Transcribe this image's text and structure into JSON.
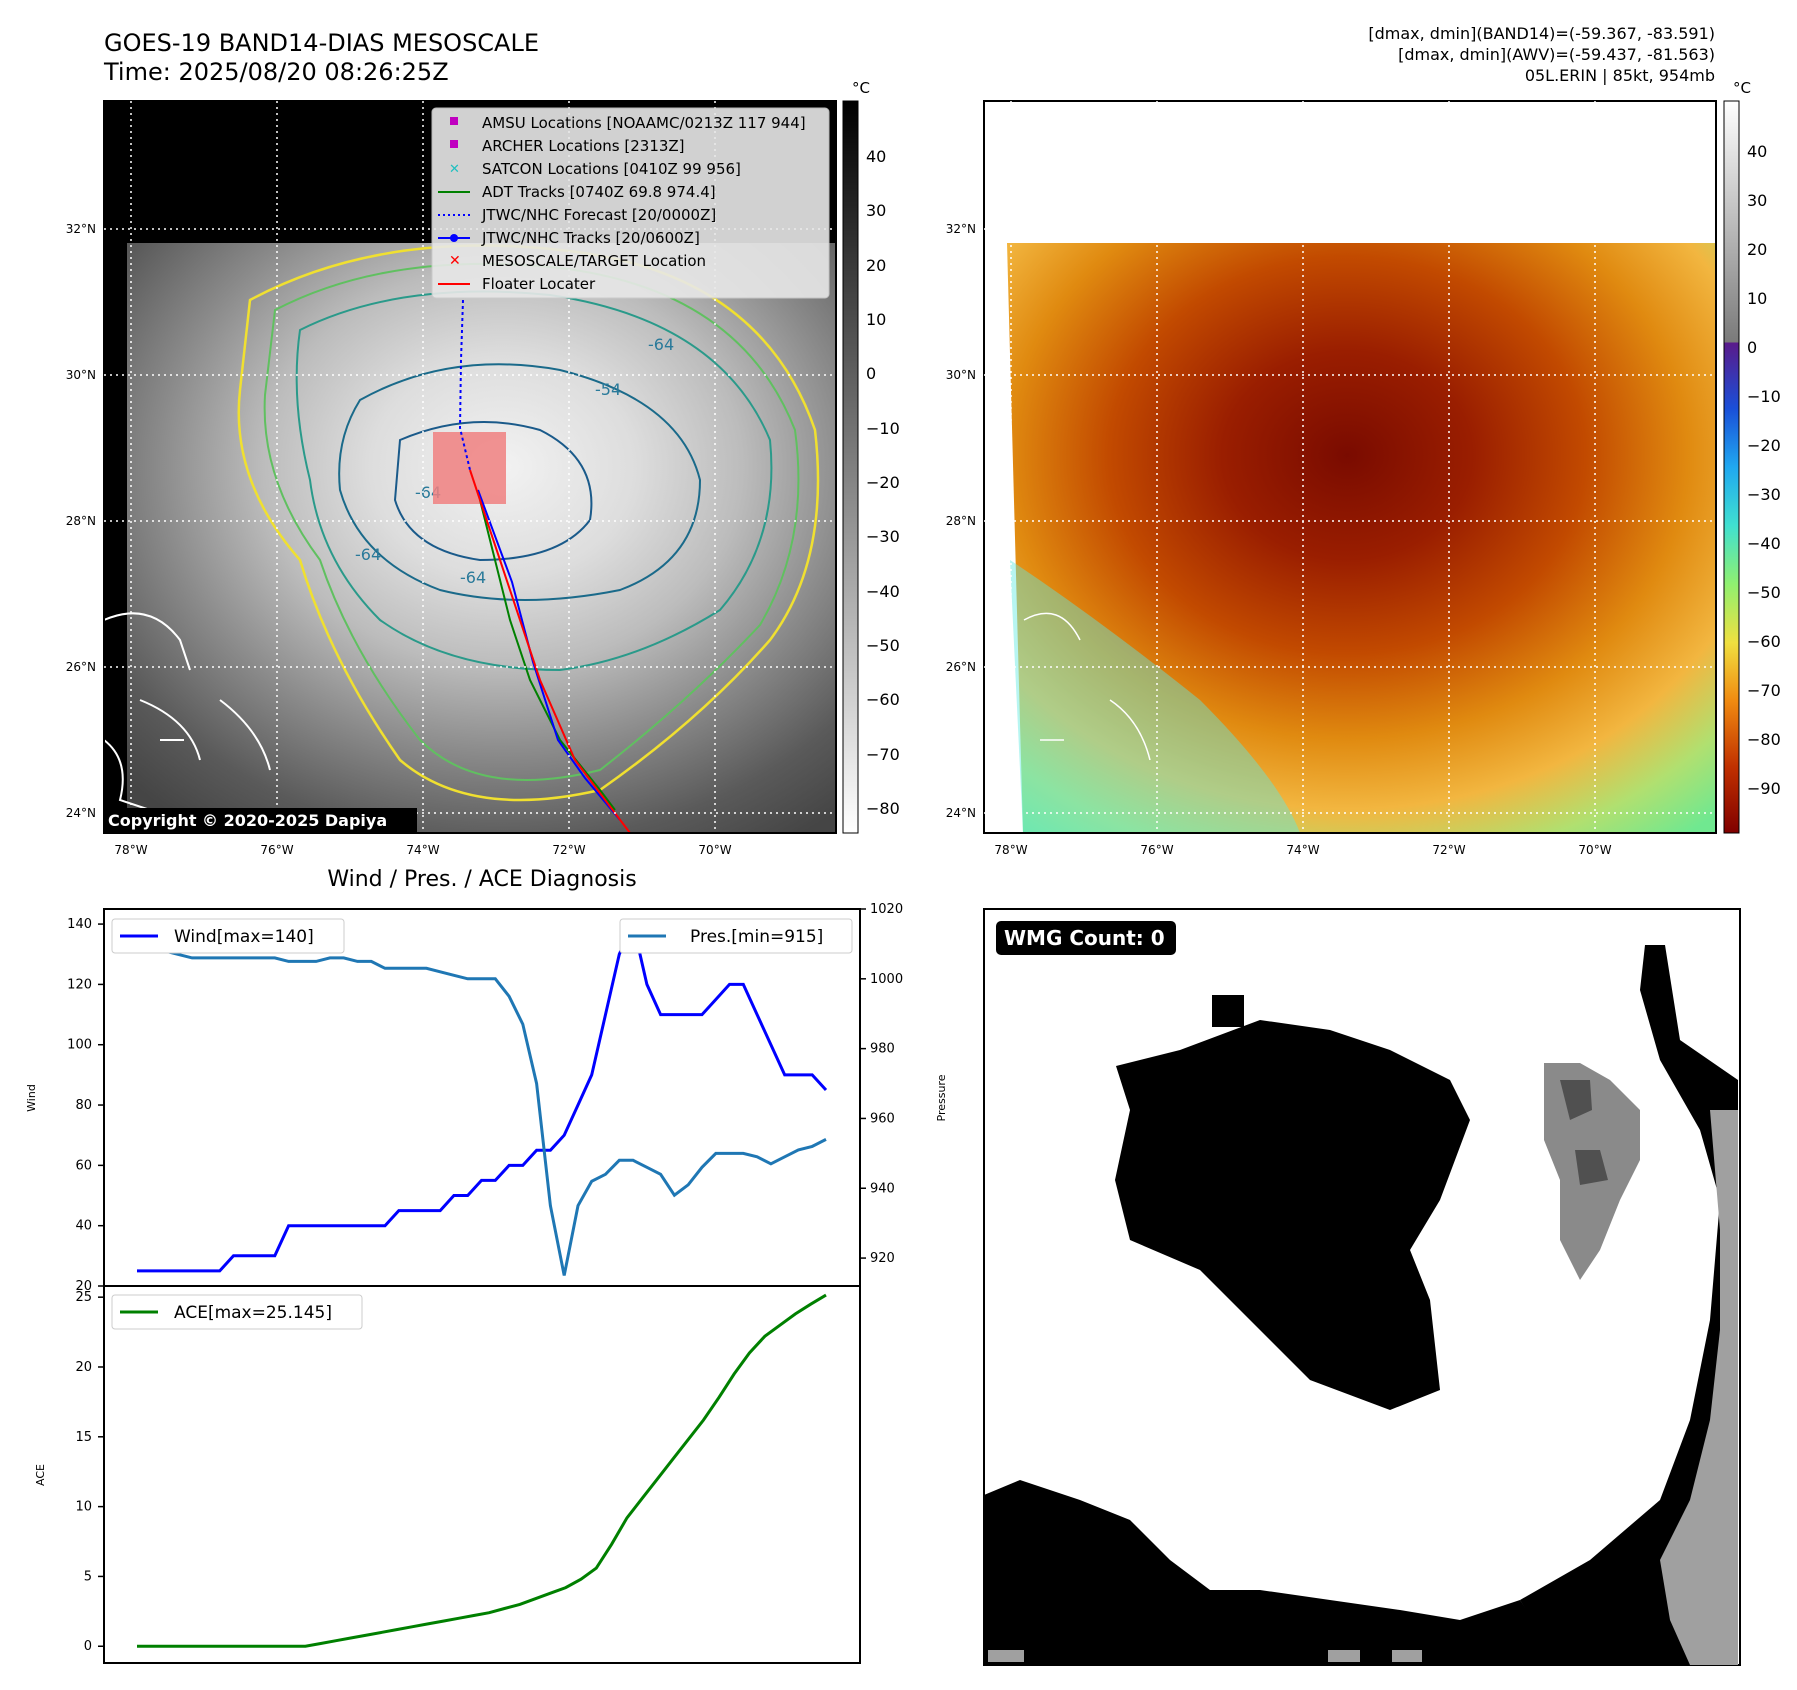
{
  "header": {
    "title": "GOES-19 BAND14-DIAS MESOSCALE",
    "time": "Time: 2025/08/20 08:26:25Z",
    "dmax_band14": "[dmax, dmin](BAND14)=(-59.367, -83.591)",
    "dmax_awv": "[dmax, dmin](AWV)=(-59.437, -81.563)",
    "storm": "05L.ERIN | 85kt, 954mb"
  },
  "map": {
    "lat_labels": [
      "32°N",
      "30°N",
      "28°N",
      "26°N",
      "24°N"
    ],
    "lon_labels": [
      "78°W",
      "76°W",
      "74°W",
      "72°W",
      "70°W"
    ],
    "copyright": "Copyright © 2020-2025 Dapiya",
    "contour_label": "-64",
    "contour_label_2": "-54",
    "legend": [
      {
        "label": "AMSU Locations [NOAAMC/0213Z 117 944]",
        "color": "#c000c0",
        "marker": "square"
      },
      {
        "label": "ARCHER Locations [2313Z]",
        "color": "#c000c0",
        "marker": "square"
      },
      {
        "label": "SATCON Locations [0410Z 99 956]",
        "color": "#20c0c0",
        "marker": "x"
      },
      {
        "label": "ADT Tracks [0740Z 69.8 974.4]",
        "color": "#008000",
        "marker": "line"
      },
      {
        "label": "JTWC/NHC Forecast [20/0000Z]",
        "color": "#0000ff",
        "marker": "dotted"
      },
      {
        "label": "JTWC/NHC Tracks [20/0600Z]",
        "color": "#0000ff",
        "marker": "line-dot"
      },
      {
        "label": "MESOSCALE/TARGET Location",
        "color": "#ff0000",
        "marker": "x"
      },
      {
        "label": "Floater Locater",
        "color": "#ff0000",
        "marker": "line"
      }
    ]
  },
  "colorbars": {
    "unit": "°C",
    "left_ticks": [
      "40",
      "30",
      "20",
      "10",
      "0",
      "−10",
      "−20",
      "−30",
      "−40",
      "−50",
      "−60",
      "−70",
      "−80"
    ],
    "right_ticks": [
      "40",
      "30",
      "20",
      "10",
      "0",
      "−10",
      "−20",
      "−30",
      "−40",
      "−50",
      "−60",
      "−70",
      "−80",
      "−90"
    ]
  },
  "chart_data": [
    {
      "type": "line",
      "title": "Wind / Pres. / ACE Diagnosis",
      "xlabel": "",
      "ylabel": "Wind",
      "ylabel_right": "Pressure",
      "ylim": [
        20,
        145
      ],
      "ylim_right": [
        912,
        1020
      ],
      "yticks": [
        "20",
        "40",
        "60",
        "80",
        "100",
        "120",
        "140"
      ],
      "yticks_right": [
        "920",
        "940",
        "960",
        "980",
        "1000",
        "1020"
      ],
      "series": [
        {
          "name": "Wind[max=140]",
          "color": "#0000ff",
          "axis": "left",
          "values": [
            25,
            25,
            25,
            25,
            25,
            25,
            25,
            30,
            30,
            30,
            30,
            40,
            40,
            40,
            40,
            40,
            40,
            40,
            40,
            45,
            45,
            45,
            45,
            50,
            50,
            55,
            55,
            60,
            60,
            65,
            65,
            70,
            80,
            90,
            110,
            130,
            140,
            120,
            110,
            110,
            110,
            110,
            115,
            120,
            120,
            110,
            100,
            90,
            90,
            90,
            85
          ]
        },
        {
          "name": "Pres.[min=915]",
          "color": "#1f77b4",
          "axis": "right",
          "values": [
            1015,
            1015,
            1008,
            1007,
            1006,
            1006,
            1006,
            1006,
            1006,
            1006,
            1006,
            1005,
            1005,
            1005,
            1006,
            1006,
            1005,
            1005,
            1003,
            1003,
            1003,
            1003,
            1002,
            1001,
            1000,
            1000,
            1000,
            995,
            987,
            970,
            935,
            915,
            935,
            942,
            944,
            948,
            948,
            946,
            944,
            938,
            941,
            946,
            950,
            950,
            950,
            949,
            947,
            949,
            951,
            952,
            954
          ]
        }
      ]
    },
    {
      "type": "line",
      "title": "",
      "xlabel": "",
      "ylabel": "ACE",
      "ylim": [
        -1.2,
        25.8
      ],
      "yticks": [
        "0",
        "5",
        "10",
        "15",
        "20",
        "25"
      ],
      "series": [
        {
          "name": "ACE[max=25.145]",
          "color": "#008000",
          "values": [
            0,
            0,
            0,
            0,
            0,
            0,
            0,
            0,
            0,
            0,
            0,
            0,
            0.2,
            0.4,
            0.6,
            0.8,
            1.0,
            1.2,
            1.4,
            1.6,
            1.8,
            2.0,
            2.2,
            2.4,
            2.7,
            3.0,
            3.4,
            3.8,
            4.2,
            4.8,
            5.6,
            7.3,
            9.2,
            10.6,
            12.0,
            13.4,
            14.8,
            16.2,
            17.8,
            19.5,
            21.0,
            22.2,
            23.0,
            23.8,
            24.5,
            25.145
          ]
        }
      ]
    }
  ],
  "wmg": {
    "label": "WMG Count: 0"
  }
}
